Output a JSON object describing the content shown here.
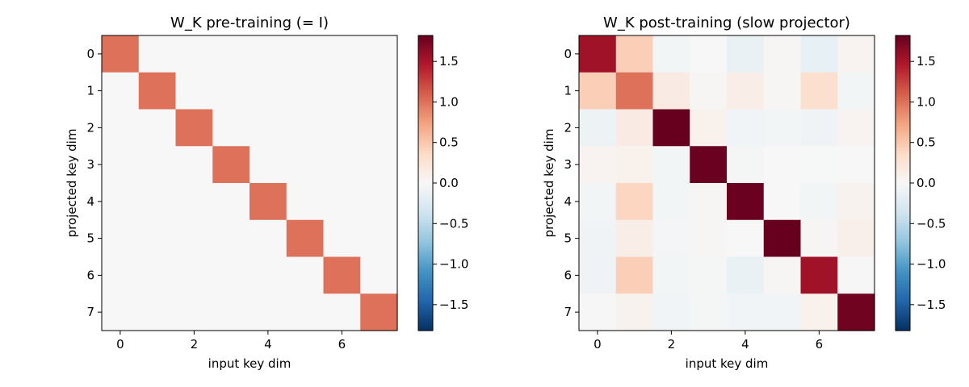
{
  "chart_data": [
    {
      "type": "heatmap",
      "title": "W_K pre-training (= I)",
      "xlabel": "input key dim",
      "ylabel": "projected key dim",
      "x_ticks": [
        "0",
        "2",
        "4",
        "6"
      ],
      "y_ticks": [
        "0",
        "1",
        "2",
        "3",
        "4",
        "5",
        "6",
        "7"
      ],
      "colorbar_ticks": [
        "1.5",
        "1.0",
        "0.5",
        "0.0",
        "−0.5",
        "−1.0",
        "−1.5"
      ],
      "colormap": "RdBu_r",
      "vmin": -1.82,
      "vmax": 1.82,
      "values": [
        [
          1.0,
          0,
          0,
          0,
          0,
          0,
          0,
          0
        ],
        [
          0,
          1.0,
          0,
          0,
          0,
          0,
          0,
          0
        ],
        [
          0,
          0,
          1.0,
          0,
          0,
          0,
          0,
          0
        ],
        [
          0,
          0,
          0,
          1.0,
          0,
          0,
          0,
          0
        ],
        [
          0,
          0,
          0,
          0,
          1.0,
          0,
          0,
          0
        ],
        [
          0,
          0,
          0,
          0,
          0,
          1.0,
          0,
          0
        ],
        [
          0,
          0,
          0,
          0,
          0,
          0,
          1.0,
          0
        ],
        [
          0,
          0,
          0,
          0,
          0,
          0,
          0,
          1.0
        ]
      ]
    },
    {
      "type": "heatmap",
      "title": "W_K post-training (slow projector)",
      "xlabel": "input key dim",
      "ylabel": "projected key dim",
      "x_ticks": [
        "0",
        "2",
        "4",
        "6"
      ],
      "y_ticks": [
        "0",
        "1",
        "2",
        "3",
        "4",
        "5",
        "6",
        "7"
      ],
      "colorbar_ticks": [
        "1.5",
        "1.0",
        "0.5",
        "0.0",
        "−0.5",
        "−1.0",
        "−1.5"
      ],
      "colormap": "RdBu_r",
      "vmin": -1.82,
      "vmax": 1.82,
      "values": [
        [
          1.55,
          0.45,
          -0.05,
          0.0,
          -0.12,
          0.02,
          -0.15,
          0.05
        ],
        [
          0.45,
          1.0,
          0.15,
          0.02,
          0.12,
          0.03,
          0.3,
          -0.05
        ],
        [
          -0.1,
          0.15,
          1.82,
          0.08,
          -0.07,
          -0.05,
          -0.08,
          0.05
        ],
        [
          0.05,
          0.08,
          -0.05,
          1.8,
          -0.03,
          0.0,
          -0.01,
          0.0
        ],
        [
          -0.05,
          0.4,
          -0.05,
          0.02,
          1.8,
          0.0,
          -0.05,
          0.06
        ],
        [
          -0.08,
          0.12,
          -0.04,
          0.02,
          0.0,
          1.82,
          0.03,
          0.1
        ],
        [
          -0.08,
          0.45,
          -0.05,
          -0.03,
          -0.13,
          0.02,
          1.55,
          0.01
        ],
        [
          0.01,
          0.06,
          -0.06,
          -0.03,
          -0.07,
          -0.06,
          0.08,
          1.78
        ]
      ]
    }
  ]
}
